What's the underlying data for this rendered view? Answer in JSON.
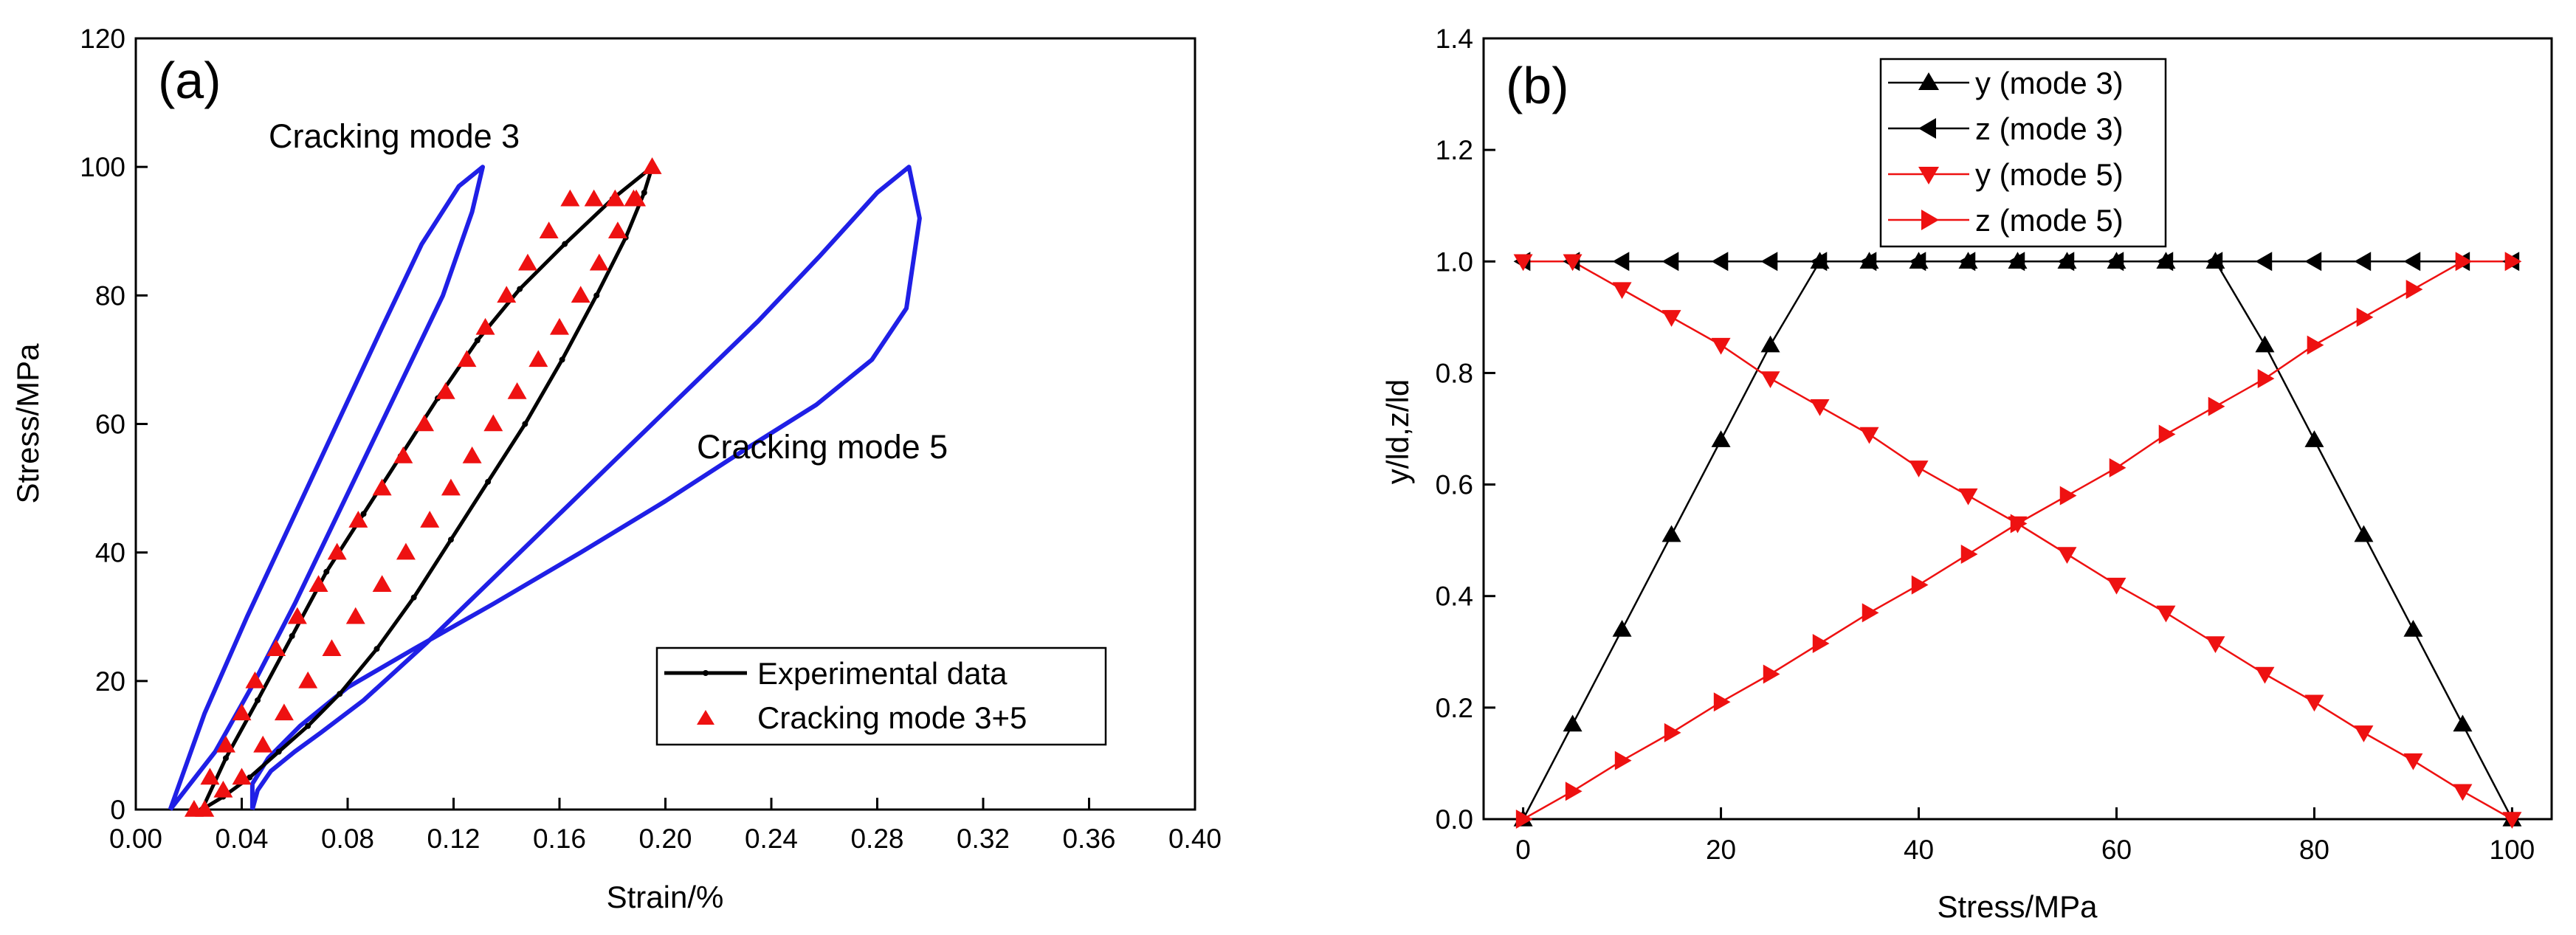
{
  "chart_data": [
    {
      "panel": "(a)",
      "type": "line",
      "xlabel": "Strain/%",
      "ylabel": "Stress/MPa",
      "xlim": [
        0,
        0.4
      ],
      "ylim": [
        0,
        120
      ],
      "xticks": [
        0.0,
        0.04,
        0.08,
        0.12,
        0.16,
        0.2,
        0.24,
        0.28,
        0.32,
        0.36,
        0.4
      ],
      "xtick_labels": [
        "0.00",
        "0.04",
        "0.08",
        "0.12",
        "0.16",
        "0.20",
        "0.24",
        "0.28",
        "0.32",
        "0.36",
        "0.40"
      ],
      "yticks": [
        0,
        20,
        40,
        60,
        80,
        100,
        120
      ],
      "ytick_labels": [
        "0",
        "20",
        "40",
        "60",
        "80",
        "100",
        "120"
      ],
      "grid": false,
      "legend_position": "bottom-right",
      "annotations": [
        "Cracking mode 3",
        "Cracking mode 5"
      ],
      "series": [
        {
          "name": "Cracking mode 3",
          "color": "#1f1fe6",
          "style": "line",
          "in_legend": false,
          "x": [
            0.013,
            0.026,
            0.042,
            0.059,
            0.076,
            0.093,
            0.108,
            0.122,
            0.131,
            0.127,
            0.116,
            0.102,
            0.088,
            0.074,
            0.06,
            0.045,
            0.03,
            0.013
          ],
          "y": [
            0,
            15,
            30,
            45,
            60,
            75,
            88,
            97,
            100,
            93,
            80,
            68,
            56,
            44,
            32,
            20,
            9,
            0
          ]
        },
        {
          "name": "Cracking mode 5",
          "color": "#1f1fe6",
          "style": "line",
          "in_legend": false,
          "x": [
            0.044,
            0.044,
            0.05,
            0.062,
            0.08,
            0.105,
            0.135,
            0.168,
            0.2,
            0.23,
            0.257,
            0.278,
            0.291,
            0.296,
            0.292,
            0.28,
            0.258,
            0.235,
            0.21,
            0.185,
            0.16,
            0.135,
            0.11,
            0.086,
            0.07,
            0.06,
            0.051,
            0.046,
            0.044
          ],
          "y": [
            0,
            4,
            8,
            13,
            19,
            25,
            32,
            40,
            48,
            56,
            63,
            70,
            78,
            92,
            100,
            96,
            86,
            76,
            66,
            56,
            46,
            36,
            26,
            17,
            12,
            9,
            6,
            3,
            0
          ]
        },
        {
          "name": "Experimental data",
          "color": "#000000",
          "style": "line-with-small-markers",
          "in_legend": true,
          "x": [
            0.025,
            0.034,
            0.046,
            0.059,
            0.072,
            0.086,
            0.1,
            0.114,
            0.129,
            0.145,
            0.162,
            0.18,
            0.195,
            0.192,
            0.185,
            0.174,
            0.161,
            0.147,
            0.133,
            0.119,
            0.105,
            0.091,
            0.077,
            0.065,
            0.054,
            0.043,
            0.033,
            0.025
          ],
          "y": [
            0,
            8,
            17,
            27,
            37,
            46,
            55,
            64,
            73,
            81,
            88,
            95,
            100,
            96,
            89,
            80,
            70,
            60,
            51,
            42,
            33,
            25,
            18,
            13,
            9,
            5,
            2,
            0
          ]
        },
        {
          "name": "Cracking mode 3+5",
          "color": "#ee1111",
          "style": "markers-triangle-up",
          "in_legend": true,
          "x": [
            0.022,
            0.028,
            0.034,
            0.04,
            0.045,
            0.053,
            0.061,
            0.069,
            0.076,
            0.084,
            0.093,
            0.101,
            0.109,
            0.117,
            0.125,
            0.132,
            0.14,
            0.148,
            0.156,
            0.164,
            0.173,
            0.181,
            0.188,
            0.195,
            0.189,
            0.182,
            0.175,
            0.168,
            0.16,
            0.152,
            0.144,
            0.135,
            0.127,
            0.119,
            0.111,
            0.102,
            0.093,
            0.083,
            0.074,
            0.065,
            0.056,
            0.048,
            0.04,
            0.033,
            0.026
          ],
          "y": [
            0,
            5,
            10,
            15,
            20,
            25,
            30,
            35,
            40,
            45,
            50,
            55,
            60,
            65,
            70,
            75,
            80,
            85,
            90,
            95,
            95,
            95,
            95,
            100,
            95,
            90,
            85,
            80,
            75,
            70,
            65,
            60,
            55,
            50,
            45,
            40,
            35,
            30,
            25,
            20,
            15,
            10,
            5,
            3,
            0
          ]
        }
      ]
    },
    {
      "panel": "(b)",
      "type": "line",
      "xlabel": "Stress/MPa",
      "ylabel": "y/ld,z/ld",
      "xlim": [
        -4,
        104
      ],
      "ylim": [
        0,
        1.4
      ],
      "xticks": [
        0,
        20,
        40,
        60,
        80,
        100
      ],
      "xtick_labels": [
        "0",
        "20",
        "40",
        "60",
        "80",
        "100"
      ],
      "yticks": [
        0,
        0.2,
        0.4,
        0.6,
        0.8,
        1.0,
        1.2,
        1.4
      ],
      "ytick_labels": [
        "0.0",
        "0.2",
        "0.4",
        "0.6",
        "0.8",
        "1.0",
        "1.2",
        "1.4"
      ],
      "grid": false,
      "legend_position": "top-left",
      "x": [
        0,
        5,
        10,
        15,
        20,
        25,
        30,
        35,
        40,
        45,
        50,
        55,
        60,
        65,
        70,
        75,
        80,
        85,
        90,
        95,
        100
      ],
      "series": [
        {
          "name": "y (mode 3)",
          "color": "#000000",
          "marker": "triangle-up",
          "values": [
            0,
            0.17,
            0.34,
            0.51,
            0.68,
            0.85,
            1.0,
            1.0,
            1.0,
            1.0,
            1.0,
            1.0,
            1.0,
            1.0,
            1.0,
            0.85,
            0.68,
            0.51,
            0.34,
            0.17,
            0
          ]
        },
        {
          "name": "z (mode 3)",
          "color": "#000000",
          "marker": "triangle-left",
          "values": [
            1.0,
            1.0,
            1.0,
            1.0,
            1.0,
            1.0,
            1.0,
            1.0,
            1.0,
            1.0,
            1.0,
            1.0,
            1.0,
            1.0,
            1.0,
            1.0,
            1.0,
            1.0,
            1.0,
            1.0,
            1.0
          ]
        },
        {
          "name": "y (mode 5)",
          "color": "#ee1111",
          "marker": "triangle-down",
          "values": [
            1.0,
            1.0,
            0.95,
            0.9,
            0.85,
            0.79,
            0.74,
            0.69,
            0.63,
            0.58,
            0.53,
            0.475,
            0.42,
            0.37,
            0.315,
            0.26,
            0.21,
            0.155,
            0.105,
            0.05,
            0
          ]
        },
        {
          "name": "z (mode 5)",
          "color": "#ee1111",
          "marker": "triangle-right",
          "values": [
            0,
            0.05,
            0.105,
            0.155,
            0.21,
            0.26,
            0.315,
            0.37,
            0.42,
            0.475,
            0.53,
            0.58,
            0.63,
            0.69,
            0.74,
            0.79,
            0.85,
            0.9,
            0.95,
            1.0,
            1.0
          ]
        }
      ]
    }
  ]
}
